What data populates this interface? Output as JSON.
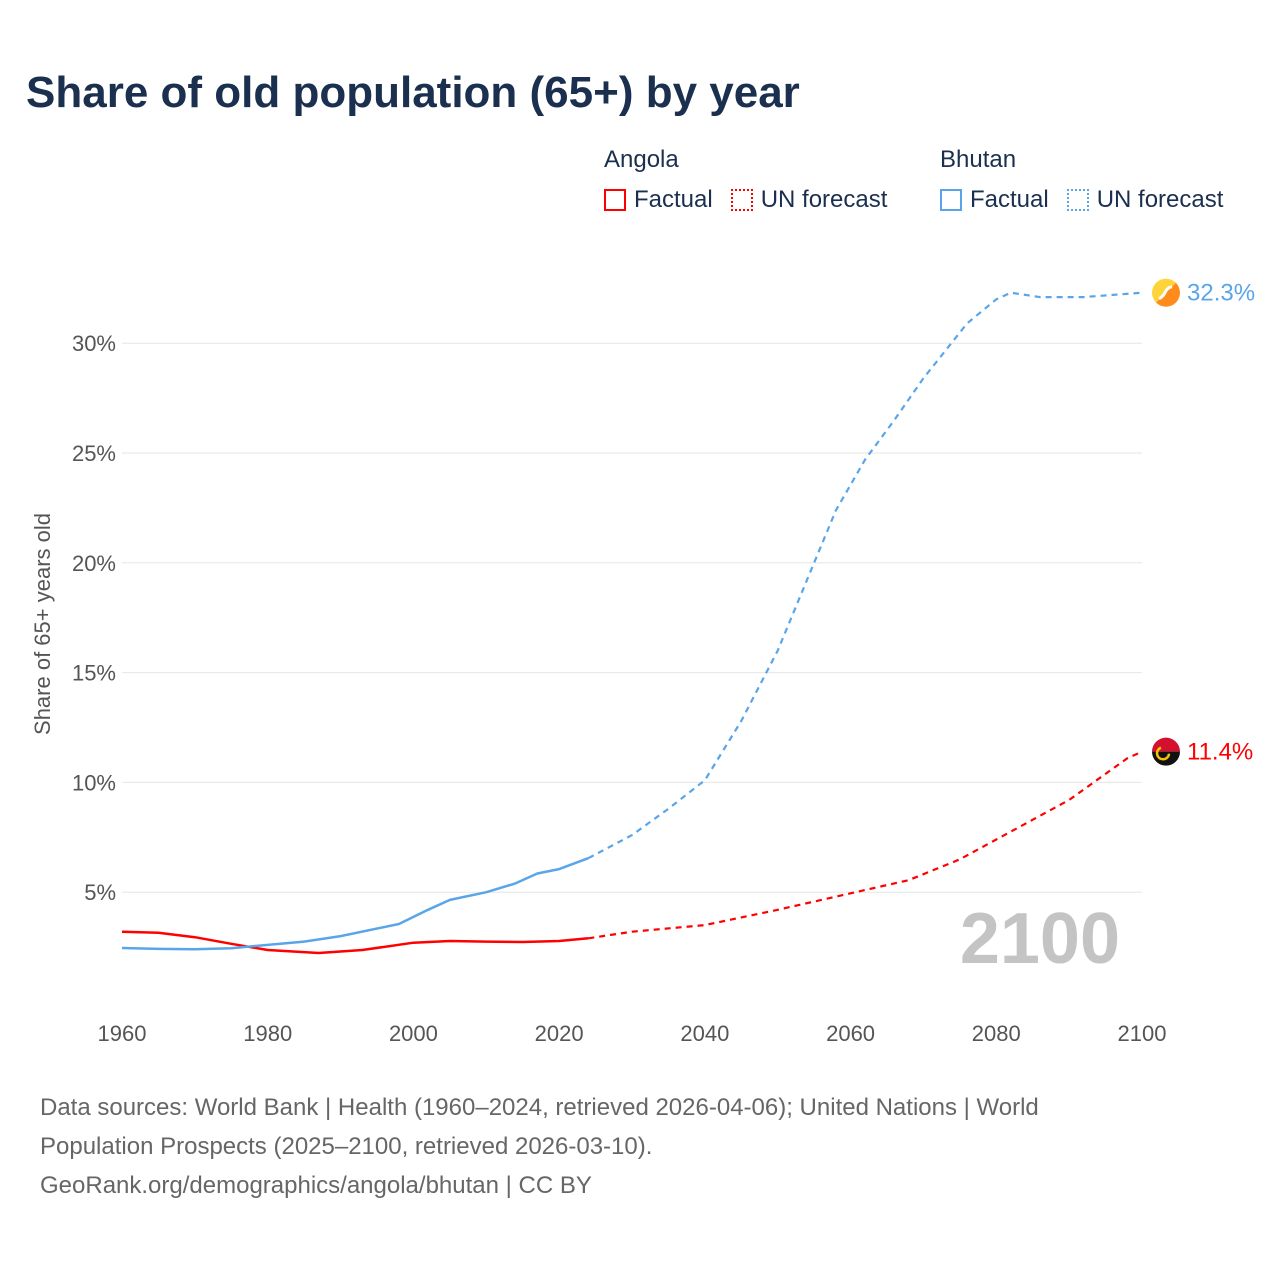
{
  "title": "Share of old population (65+) by year",
  "legend": {
    "groups": [
      {
        "name": "Angola",
        "color": "#ff0000",
        "items": [
          "Factual",
          "UN forecast"
        ]
      },
      {
        "name": "Bhutan",
        "color": "#5aa5ea",
        "items": [
          "Factual",
          "UN forecast"
        ]
      }
    ]
  },
  "year_watermark": "2100",
  "footer": {
    "line1": "Data sources: World Bank | Health (1960–2024, retrieved 2026-04-06); United Nations | World",
    "line2": "Population Prospects (2025–2100, retrieved 2026-03-10).",
    "line3": "GeoRank.org/demographics/angola/bhutan | CC BY"
  },
  "chart_data": {
    "type": "line",
    "title": "Share of old population (65+) by year",
    "xlabel": "",
    "ylabel": "Share of 65+ years old",
    "xlim": [
      1960,
      2100
    ],
    "ylim": [
      0,
      33
    ],
    "xticks": [
      1960,
      1980,
      2000,
      2020,
      2040,
      2060,
      2080,
      2100
    ],
    "yticks": [
      5,
      10,
      15,
      20,
      25,
      30
    ],
    "ytick_labels": [
      "5%",
      "10%",
      "15%",
      "20%",
      "25%",
      "30%"
    ],
    "grid": true,
    "factual_until": 2024,
    "series": [
      {
        "name": "Angola",
        "color": "#ff0000",
        "end_label": "11.4%",
        "x": [
          1960,
          1965,
          1970,
          1975,
          1980,
          1987,
          1993,
          2000,
          2005,
          2010,
          2015,
          2020,
          2024,
          2030,
          2040,
          2050,
          2060,
          2068,
          2075,
          2080,
          2090,
          2098,
          2100
        ],
        "y": [
          3.2,
          3.15,
          2.95,
          2.65,
          2.37,
          2.23,
          2.37,
          2.7,
          2.78,
          2.75,
          2.73,
          2.78,
          2.9,
          3.2,
          3.5,
          4.2,
          4.95,
          5.55,
          6.5,
          7.4,
          9.2,
          11.1,
          11.4
        ]
      },
      {
        "name": "Bhutan",
        "color": "#5aa5ea",
        "end_label": "32.3%",
        "x": [
          1960,
          1965,
          1970,
          1975,
          1980,
          1985,
          1990,
          1998,
          2002,
          2005,
          2010,
          2014,
          2017,
          2020,
          2024,
          2030,
          2035,
          2040,
          2045,
          2050,
          2055,
          2058,
          2062,
          2066,
          2070,
          2076,
          2080,
          2082,
          2086,
          2092,
          2096,
          2100
        ],
        "y": [
          2.46,
          2.42,
          2.4,
          2.45,
          2.6,
          2.75,
          3.0,
          3.55,
          4.2,
          4.65,
          5.0,
          5.4,
          5.85,
          6.05,
          6.55,
          7.6,
          8.8,
          10.1,
          12.8,
          16.0,
          20.0,
          22.4,
          24.7,
          26.5,
          28.4,
          30.9,
          32.0,
          32.3,
          32.1,
          32.1,
          32.2,
          32.3
        ]
      }
    ]
  }
}
